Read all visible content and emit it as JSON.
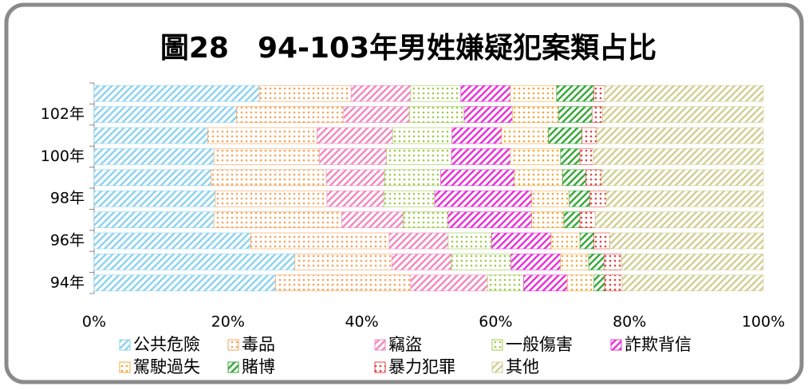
{
  "chart_data": {
    "type": "stacked_barh",
    "title": "圖28　94-103年男姓嫌疑犯案類占比",
    "categories": [
      "94年",
      null,
      "96年",
      null,
      "98年",
      null,
      "100年",
      null,
      "102年",
      null
    ],
    "series": [
      {
        "name": "公共危險",
        "color": "#8fd3ef",
        "values": [
          27.1,
          30.0,
          23.4,
          17.9,
          18.1,
          17.5,
          17.9,
          17.0,
          21.3,
          24.7
        ]
      },
      {
        "name": "毒品",
        "color": "#f5a25a",
        "values": [
          20.2,
          14.5,
          20.7,
          19.1,
          16.7,
          17.2,
          15.8,
          16.3,
          16.0,
          13.7
        ]
      },
      {
        "name": "竊盜",
        "color": "#f08bc0",
        "values": [
          11.5,
          8.9,
          8.8,
          9.2,
          8.5,
          8.7,
          10.0,
          11.3,
          9.8,
          8.9
        ]
      },
      {
        "name": "一般傷害",
        "color": "#9ccb4a",
        "values": [
          5.4,
          8.9,
          6.5,
          6.7,
          7.6,
          8.4,
          9.7,
          8.9,
          8.2,
          7.5
        ]
      },
      {
        "name": "詐欺背信",
        "color": "#e536d6",
        "values": [
          6.5,
          7.4,
          8.9,
          12.5,
          14.5,
          11.0,
          8.8,
          7.4,
          7.2,
          7.4
        ]
      },
      {
        "name": "駕駛過失",
        "color": "#f3a73a",
        "values": [
          4.0,
          4.2,
          4.3,
          4.8,
          5.6,
          7.2,
          7.5,
          7.0,
          6.9,
          6.9
        ]
      },
      {
        "name": "賭博",
        "color": "#3aa83a",
        "values": [
          1.6,
          2.3,
          2.1,
          2.4,
          3.1,
          3.5,
          2.9,
          5.0,
          5.0,
          5.6
        ]
      },
      {
        "name": "暴力犯罪",
        "color": "#e0403a",
        "values": [
          2.6,
          2.6,
          2.4,
          2.3,
          2.4,
          2.3,
          2.0,
          2.2,
          1.6,
          1.6
        ]
      },
      {
        "name": "其他",
        "color": "#d3cf96",
        "values": [
          21.1,
          21.2,
          22.9,
          25.1,
          23.5,
          24.2,
          25.4,
          24.9,
          24.0,
          23.7
        ]
      }
    ],
    "xlim": [
      0,
      100
    ],
    "xticks": [
      {
        "value": 0,
        "label": "0%"
      },
      {
        "value": 20,
        "label": "20%"
      },
      {
        "value": 40,
        "label": "40%"
      },
      {
        "value": 60,
        "label": "60%"
      },
      {
        "value": 80,
        "label": "80%"
      },
      {
        "value": 100,
        "label": "100%"
      }
    ],
    "legend": "bottom"
  }
}
